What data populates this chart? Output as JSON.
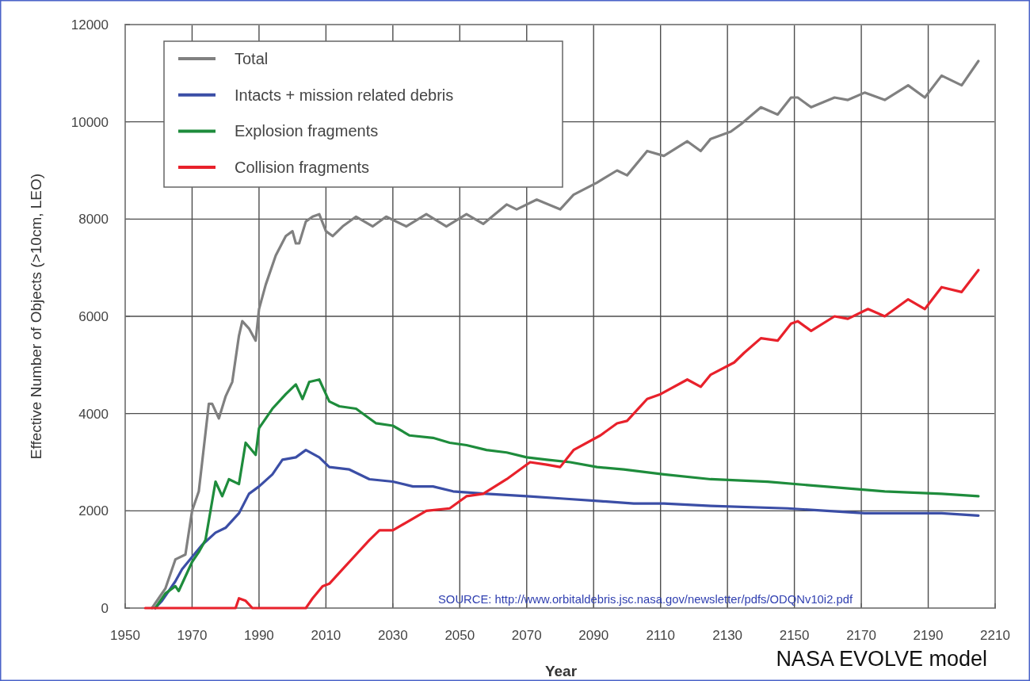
{
  "chart_data": {
    "type": "line",
    "xlabel": "Year",
    "ylabel": "Effective Number of Objects (>10cm, LEO)",
    "annotations": [
      "SOURCE: http://www.orbitaldebris.jsc.nasa.gov/newsletter/pdfs/ODQNv10i2.pdf",
      "NASA EVOLVE model"
    ],
    "xlim": [
      1950,
      2210
    ],
    "xticks": [
      1950,
      1970,
      1990,
      2010,
      2030,
      2050,
      2070,
      2090,
      2110,
      2130,
      2150,
      2170,
      2190,
      2210
    ],
    "ylim": [
      0,
      12000
    ],
    "yticks": [
      0,
      2000,
      4000,
      6000,
      8000,
      10000,
      12000
    ],
    "grid": true,
    "legend": "top left",
    "series": [
      {
        "name": "Total",
        "color": "#808080",
        "x": [
          1958,
          1960,
          1962,
          1965,
          1968,
          1970,
          1972,
          1975,
          1976,
          1978,
          1980,
          1982,
          1984,
          1985,
          1987,
          1989,
          1990,
          1992,
          1995,
          1998,
          2000,
          2001,
          2002,
          2004,
          2006,
          2008,
          2010,
          2012,
          2015,
          2019,
          2024,
          2028,
          2034,
          2040,
          2046,
          2052,
          2057,
          2064,
          2067,
          2073,
          2080,
          2084,
          2091,
          2097,
          2100,
          2106,
          2111,
          2118,
          2122,
          2125,
          2131,
          2134,
          2140,
          2145,
          2149,
          2151,
          2155,
          2162,
          2166,
          2171,
          2177,
          2184,
          2189,
          2194,
          2200,
          2205
        ],
        "values": [
          0,
          200,
          400,
          1000,
          1100,
          2000,
          2400,
          4200,
          4200,
          3900,
          4350,
          4650,
          5600,
          5900,
          5750,
          5500,
          6150,
          6650,
          7250,
          7650,
          7750,
          7500,
          7500,
          7950,
          8050,
          8100,
          7750,
          7650,
          7850,
          8050,
          7850,
          8050,
          7850,
          8100,
          7850,
          8100,
          7900,
          8300,
          8200,
          8400,
          8200,
          8500,
          8750,
          9000,
          8900,
          9400,
          9300,
          9600,
          9400,
          9650,
          9800,
          9950,
          10300,
          10150,
          10500,
          10500,
          10300,
          10500,
          10450,
          10600,
          10450,
          10750,
          10500,
          10950,
          10750,
          11250
        ]
      },
      {
        "name": "Intacts + mission related debris",
        "color": "#3b4ea6",
        "x": [
          1959,
          1961,
          1965,
          1967,
          1970,
          1973,
          1977,
          1980,
          1984,
          1987,
          1990,
          1994,
          1997,
          2001,
          2004,
          2008,
          2011,
          2017,
          2023,
          2030,
          2036,
          2042,
          2048,
          2058,
          2070,
          2081,
          2092,
          2102,
          2111,
          2125,
          2148,
          2171,
          2194,
          2205
        ],
        "values": [
          0,
          150,
          550,
          800,
          1050,
          1300,
          1550,
          1650,
          1950,
          2350,
          2500,
          2750,
          3050,
          3100,
          3250,
          3100,
          2900,
          2850,
          2650,
          2600,
          2500,
          2500,
          2400,
          2350,
          2300,
          2250,
          2200,
          2150,
          2150,
          2100,
          2050,
          1950,
          1950,
          1900
        ]
      },
      {
        "name": "Explosion fragments",
        "color": "#1e8c3c",
        "x": [
          1959,
          1960,
          1962,
          1965,
          1966,
          1970,
          1972,
          1974,
          1977,
          1979,
          1981,
          1984,
          1986,
          1989,
          1990,
          1994,
          1998,
          2001,
          2003,
          2005,
          2008,
          2011,
          2014,
          2019,
          2025,
          2030,
          2035,
          2042,
          2047,
          2052,
          2058,
          2064,
          2070,
          2076,
          2083,
          2091,
          2099,
          2111,
          2125,
          2142,
          2159,
          2177,
          2194,
          2205
        ],
        "values": [
          0,
          100,
          300,
          450,
          350,
          950,
          1150,
          1400,
          2600,
          2300,
          2650,
          2550,
          3400,
          3150,
          3700,
          4100,
          4400,
          4600,
          4300,
          4650,
          4700,
          4250,
          4150,
          4100,
          3800,
          3750,
          3550,
          3500,
          3400,
          3350,
          3250,
          3200,
          3100,
          3050,
          3000,
          2900,
          2850,
          2750,
          2650,
          2600,
          2500,
          2400,
          2350,
          2300
        ]
      },
      {
        "name": "Collision fragments",
        "color": "#e8212b",
        "x": [
          1956,
          1983,
          1984,
          1986,
          1988,
          2004,
          2006,
          2009,
          2011,
          2015,
          2019,
          2023,
          2026,
          2030,
          2040,
          2047,
          2052,
          2057,
          2064,
          2071,
          2076,
          2080,
          2084,
          2092,
          2097,
          2100,
          2106,
          2110,
          2118,
          2122,
          2125,
          2132,
          2135,
          2140,
          2145,
          2149,
          2151,
          2155,
          2162,
          2166,
          2172,
          2177,
          2184,
          2189,
          2194,
          2200,
          2205
        ],
        "values": [
          0,
          0,
          200,
          150,
          0,
          0,
          200,
          450,
          500,
          800,
          1100,
          1400,
          1600,
          1600,
          2000,
          2050,
          2300,
          2350,
          2650,
          3000,
          2950,
          2900,
          3250,
          3550,
          3800,
          3850,
          4300,
          4400,
          4700,
          4550,
          4800,
          5050,
          5250,
          5550,
          5500,
          5850,
          5900,
          5700,
          6000,
          5950,
          6150,
          6000,
          6350,
          6150,
          6600,
          6500,
          6950
        ]
      }
    ]
  }
}
